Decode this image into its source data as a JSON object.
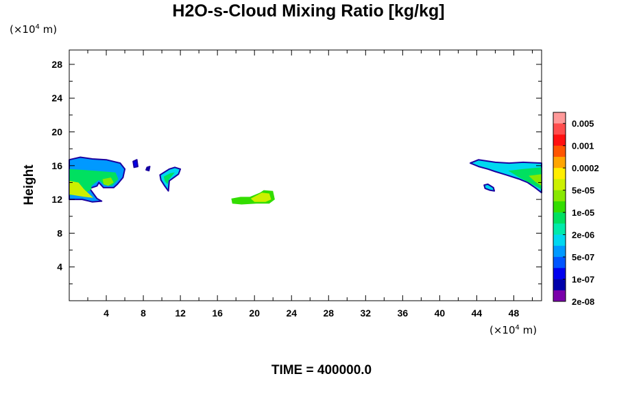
{
  "chart_data": {
    "type": "heatmap",
    "title": "H2O-s-Cloud Mixing Ratio [kg/kg]",
    "xlabel": "",
    "ylabel": "Height",
    "x_unit": "(×10⁴ m)",
    "y_unit": "(×10⁴ m)",
    "xlim": [
      0,
      51
    ],
    "ylim": [
      0,
      29.7
    ],
    "x_ticks": [
      4,
      8,
      12,
      16,
      20,
      24,
      28,
      32,
      36,
      40,
      44,
      48
    ],
    "y_ticks": [
      4,
      8,
      12,
      16,
      20,
      24,
      28
    ],
    "grid": false,
    "colorbar": {
      "placement": "right",
      "labels": [
        "0.005",
        "0.001",
        "0.0002",
        "5e-05",
        "1e-05",
        "2e-06",
        "5e-07",
        "1e-07",
        "2e-08"
      ],
      "colors": [
        "#ff9999",
        "#ff4d4d",
        "#ff1010",
        "#ff5500",
        "#ffa500",
        "#ffee00",
        "#ccf000",
        "#88e800",
        "#33dd00",
        "#00e060",
        "#00eaaa",
        "#00d8f0",
        "#0099ff",
        "#0055ff",
        "#0000ee",
        "#0000aa",
        "#7a00aa"
      ]
    },
    "regions": [
      {
        "name": "left-cloud-main",
        "points": [
          [
            0,
            16.7
          ],
          [
            1.2,
            17.0
          ],
          [
            2.5,
            16.8
          ],
          [
            4,
            16.7
          ],
          [
            5.5,
            16.3
          ],
          [
            6,
            15.6
          ],
          [
            5.8,
            14.6
          ],
          [
            5.2,
            13.8
          ],
          [
            4.8,
            13.4
          ],
          [
            3.7,
            13.4
          ],
          [
            3.2,
            14.0
          ],
          [
            3.0,
            13.6
          ],
          [
            2.2,
            13.3
          ],
          [
            3.0,
            12.1
          ],
          [
            3.5,
            11.8
          ],
          [
            2.5,
            11.7
          ],
          [
            1.4,
            12.0
          ],
          [
            0,
            12.0
          ]
        ],
        "level": 12
      },
      {
        "name": "left-cloud-mid",
        "points": [
          [
            0,
            15.6
          ],
          [
            2.8,
            15.4
          ],
          [
            5,
            15.2
          ],
          [
            5.3,
            14.4
          ],
          [
            4.6,
            13.6
          ],
          [
            3.8,
            13.7
          ],
          [
            3.2,
            14.3
          ],
          [
            2.4,
            13.6
          ],
          [
            2.4,
            13.2
          ],
          [
            1.5,
            12.6
          ],
          [
            0,
            12.5
          ]
        ],
        "level": 9
      },
      {
        "name": "left-cloud-core",
        "points": [
          [
            0,
            14.2
          ],
          [
            1,
            14.0
          ],
          [
            1.6,
            13.2
          ],
          [
            2.6,
            12.2
          ],
          [
            1.6,
            12.3
          ],
          [
            0,
            12.6
          ]
        ],
        "level": 6
      },
      {
        "name": "left-cloud-core2",
        "points": [
          [
            3.6,
            14.4
          ],
          [
            4.5,
            14.6
          ],
          [
            4.8,
            14.0
          ],
          [
            4.2,
            13.6
          ],
          [
            3.7,
            13.8
          ]
        ],
        "level": 7
      },
      {
        "name": "small-blob-1",
        "points": [
          [
            6.9,
            16.5
          ],
          [
            7.3,
            16.7
          ],
          [
            7.4,
            15.9
          ],
          [
            7.0,
            15.8
          ]
        ],
        "level": 14
      },
      {
        "name": "small-blob-2",
        "points": [
          [
            8.4,
            15.8
          ],
          [
            8.7,
            15.9
          ],
          [
            8.6,
            15.4
          ],
          [
            8.3,
            15.5
          ]
        ],
        "level": 15
      },
      {
        "name": "cloud-near-11",
        "points": [
          [
            9.8,
            14.9
          ],
          [
            10.8,
            15.6
          ],
          [
            11.4,
            15.8
          ],
          [
            12.0,
            15.6
          ],
          [
            11.8,
            15.0
          ],
          [
            10.8,
            14.2
          ],
          [
            10.7,
            13.0
          ],
          [
            10.3,
            13.6
          ],
          [
            9.9,
            14.3
          ]
        ],
        "level": 11
      },
      {
        "name": "cloud-near-11-core",
        "points": [
          [
            10.2,
            14.7
          ],
          [
            10.9,
            15.1
          ],
          [
            11.4,
            15.2
          ],
          [
            10.8,
            14.4
          ],
          [
            10.6,
            13.8
          ],
          [
            10.3,
            14.2
          ]
        ],
        "level": 9
      },
      {
        "name": "cloud-center",
        "points": [
          [
            17.5,
            12.1
          ],
          [
            18.5,
            12.3
          ],
          [
            19.5,
            12.3
          ],
          [
            20.6,
            12.8
          ],
          [
            21.0,
            13.1
          ],
          [
            22.0,
            13.0
          ],
          [
            22.2,
            12.0
          ],
          [
            21.6,
            11.5
          ],
          [
            20.2,
            11.5
          ],
          [
            18.6,
            11.4
          ],
          [
            17.6,
            11.5
          ]
        ],
        "level": 8
      },
      {
        "name": "cloud-center-core",
        "points": [
          [
            19.6,
            12.1
          ],
          [
            20.8,
            12.8
          ],
          [
            21.6,
            12.7
          ],
          [
            21.8,
            12.0
          ],
          [
            21.2,
            11.7
          ],
          [
            20.0,
            11.7
          ]
        ],
        "level": 6
      },
      {
        "name": "right-cloud-main",
        "points": [
          [
            43.3,
            16.3
          ],
          [
            44.2,
            16.7
          ],
          [
            46,
            16.4
          ],
          [
            47.5,
            16.3
          ],
          [
            49,
            16.4
          ],
          [
            51,
            16.3
          ],
          [
            51,
            12.8
          ],
          [
            50.3,
            13.4
          ],
          [
            49.5,
            14.0
          ],
          [
            48.6,
            14.4
          ],
          [
            47.2,
            14.9
          ],
          [
            46.0,
            15.3
          ],
          [
            45.2,
            15.6
          ],
          [
            44.2,
            15.9
          ]
        ],
        "level": 11
      },
      {
        "name": "right-cloud-core",
        "points": [
          [
            47.4,
            15.4
          ],
          [
            49,
            15.6
          ],
          [
            51,
            15.8
          ],
          [
            51,
            13.2
          ],
          [
            49.8,
            13.9
          ],
          [
            48.6,
            14.6
          ]
        ],
        "level": 9
      },
      {
        "name": "right-cloud-core2",
        "points": [
          [
            49.6,
            14.8
          ],
          [
            51,
            15.0
          ],
          [
            51,
            13.6
          ],
          [
            50.3,
            14.1
          ]
        ],
        "level": 7
      },
      {
        "name": "right-small-blob",
        "points": [
          [
            44.8,
            13.7
          ],
          [
            45.2,
            13.8
          ],
          [
            45.8,
            13.4
          ],
          [
            45.9,
            13.0
          ],
          [
            45.4,
            13.1
          ],
          [
            44.9,
            13.3
          ]
        ],
        "level": 11
      }
    ]
  },
  "footer": {
    "time_label": "TIME = 400000.0"
  }
}
